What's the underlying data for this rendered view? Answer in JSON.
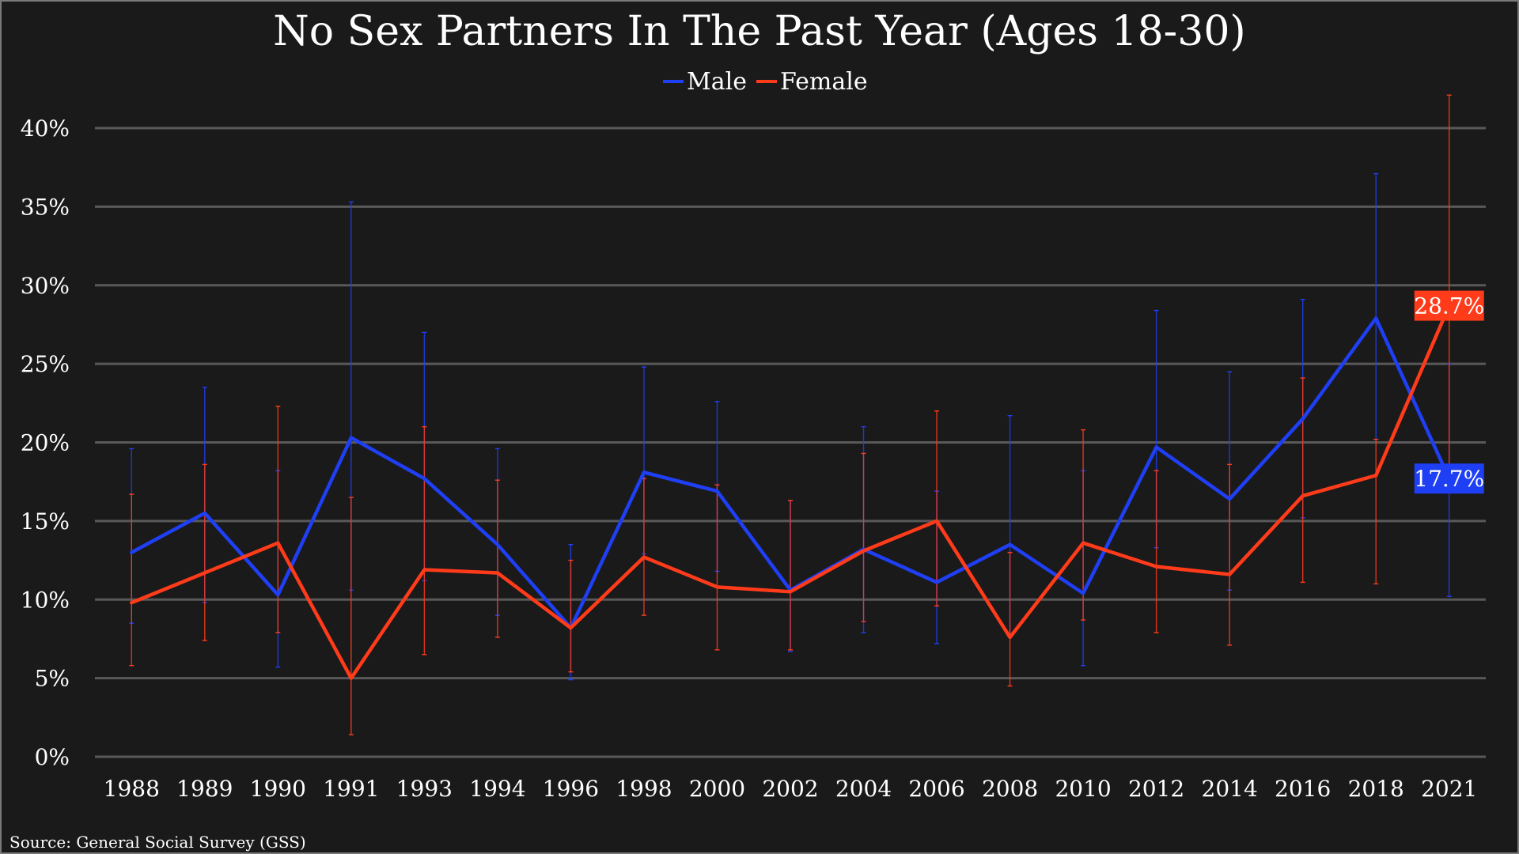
{
  "chart_data": {
    "type": "line",
    "title": "No Sex Partners In The Past Year (Ages 18-30)",
    "xlabel": "",
    "ylabel": "",
    "categories": [
      "1988",
      "1989",
      "1990",
      "1991",
      "1993",
      "1994",
      "1996",
      "1998",
      "2000",
      "2002",
      "2004",
      "2006",
      "2008",
      "2010",
      "2012",
      "2014",
      "2016",
      "2018",
      "2021"
    ],
    "y_ticks": [
      "0%",
      "5%",
      "10%",
      "15%",
      "20%",
      "25%",
      "30%",
      "35%",
      "40%"
    ],
    "ylim": [
      0,
      40
    ],
    "grid": true,
    "legend_position": "top-center",
    "series": [
      {
        "name": "Male",
        "color": "#1f3ff5",
        "values": [
          13.0,
          15.5,
          10.3,
          20.3,
          17.7,
          13.5,
          8.2,
          18.1,
          16.9,
          10.6,
          13.2,
          11.1,
          13.5,
          10.4,
          19.7,
          16.4,
          21.5,
          27.9,
          17.7
        ],
        "error_low": [
          8.5,
          9.8,
          5.7,
          10.6,
          11.2,
          9.0,
          4.9,
          12.9,
          11.8,
          6.7,
          7.9,
          7.2,
          7.8,
          5.8,
          13.3,
          10.6,
          15.2,
          20.2,
          10.2
        ],
        "error_high": [
          19.6,
          23.5,
          18.2,
          35.3,
          27.0,
          19.6,
          13.5,
          24.8,
          22.6,
          16.3,
          21.0,
          16.9,
          21.7,
          18.2,
          28.4,
          24.5,
          29.1,
          37.1,
          25.0
        ]
      },
      {
        "name": "Female",
        "color": "#ff3b1a",
        "values": [
          9.8,
          11.7,
          13.6,
          5.0,
          11.9,
          11.7,
          8.2,
          12.7,
          10.8,
          10.5,
          13.1,
          15.0,
          7.6,
          13.6,
          12.1,
          11.6,
          16.6,
          17.9,
          28.7
        ],
        "error_low": [
          5.8,
          7.4,
          7.9,
          1.4,
          6.5,
          7.6,
          5.4,
          9.0,
          6.8,
          6.8,
          8.6,
          9.6,
          4.5,
          8.7,
          7.9,
          7.1,
          11.1,
          11.0,
          17.7
        ],
        "error_high": [
          16.7,
          18.6,
          22.3,
          16.5,
          21.0,
          17.6,
          12.5,
          17.7,
          17.3,
          16.3,
          19.3,
          22.0,
          13.0,
          20.8,
          18.2,
          18.6,
          24.1,
          20.2,
          42.1
        ]
      }
    ],
    "annotations": [
      {
        "series": "Female",
        "category": "2021",
        "text": "28.7%",
        "color": "#ff3b1a"
      },
      {
        "series": "Male",
        "category": "2021",
        "text": "17.7%",
        "color": "#1f3ff5"
      }
    ]
  },
  "source": "Source: General Social Survey (GSS)",
  "background_color": "#1a1a1a",
  "grid_color": "#595959"
}
